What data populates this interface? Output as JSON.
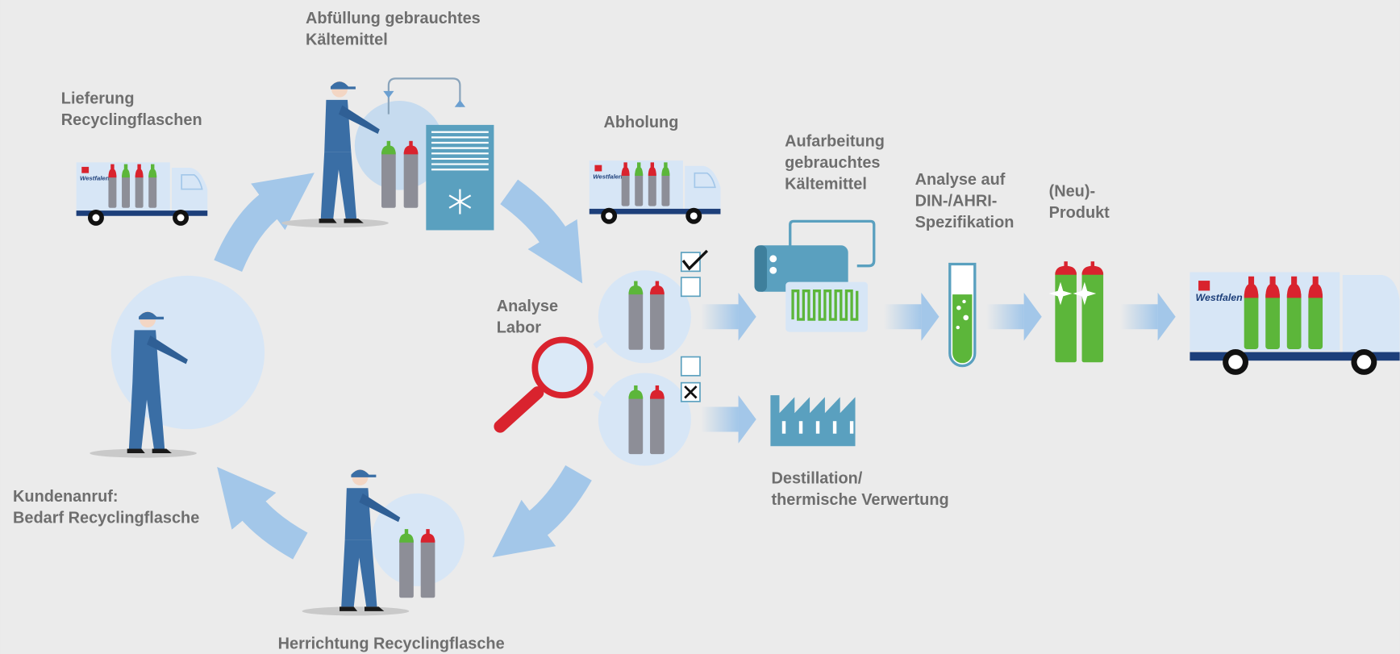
{
  "labels": {
    "abfuellung": [
      "Abfüllung gebrauchtes",
      "Kältemittel"
    ],
    "lieferung": [
      "Lieferung",
      "Recyclingflaschen"
    ],
    "abholung": [
      "Abholung"
    ],
    "aufarbeitung": [
      "Aufarbeitung",
      "gebrauchtes",
      "Kältemittel"
    ],
    "analyse_spez": [
      "Analyse auf",
      "DIN-/AHRI-",
      "Spezifikation"
    ],
    "produkt": [
      "(Neu)-",
      "Produkt"
    ],
    "labor": [
      "Analyse",
      "Labor"
    ],
    "kundenanruf": [
      "Kundenanruf:",
      "Bedarf Recyclingflasche"
    ],
    "destillation": [
      "Destillation/",
      "thermische Verwertung"
    ],
    "herrichtung": [
      "Herrichtung Recyclingflasche"
    ]
  },
  "brand": "Westfalen"
}
